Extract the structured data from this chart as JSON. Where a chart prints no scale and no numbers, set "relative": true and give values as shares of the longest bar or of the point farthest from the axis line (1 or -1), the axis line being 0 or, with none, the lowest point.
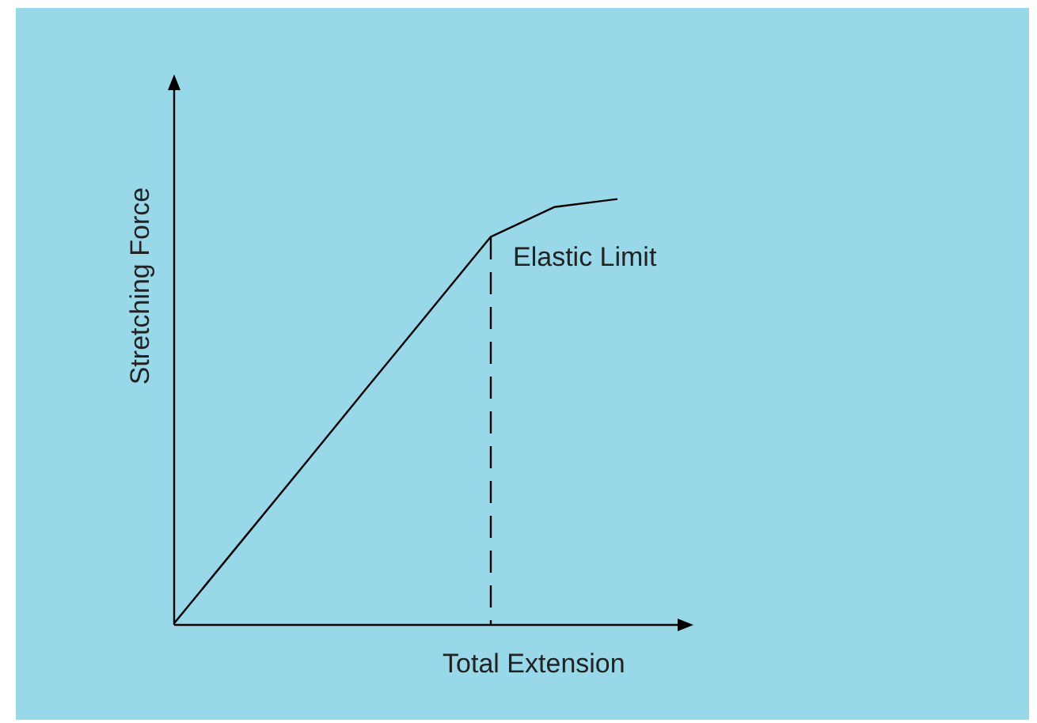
{
  "chart_data": {
    "type": "line",
    "relative": true,
    "xlabel": "Total Extension",
    "ylabel": "Stretching Force",
    "categories": [
      null,
      null,
      null,
      null,
      null,
      null,
      null,
      null
    ],
    "series": [
      {
        "color": "#000000",
        "values": [
          0,
          0.182,
          0.364,
          0.547,
          0.729,
          0.911,
          0.981,
          1
        ]
      }
    ],
    "annotations": [
      "Elastic Limit"
    ],
    "marker": "none",
    "grid": false,
    "legend": false
  }
}
